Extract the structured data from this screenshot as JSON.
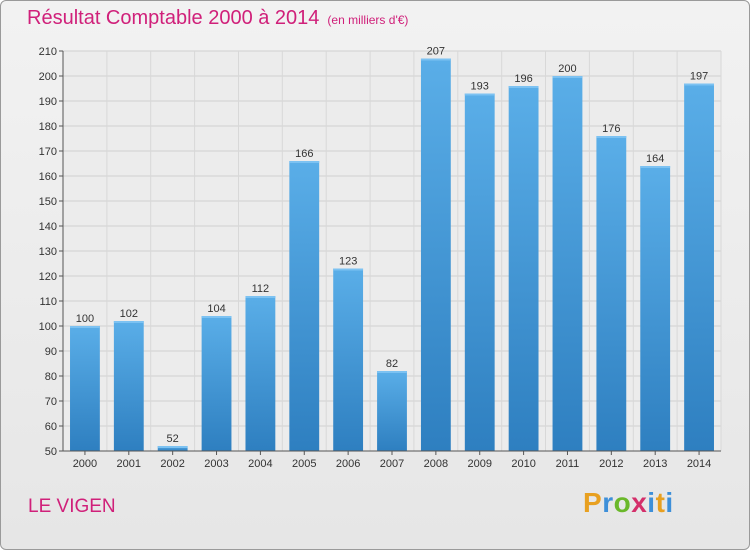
{
  "title": "Résultat Comptable 2000 à 2014",
  "subtitle": "(en milliers d'€)",
  "commune": "LE VIGEN",
  "logo": {
    "letters": [
      "P",
      "r",
      "o",
      "x",
      "i",
      "t",
      "i"
    ]
  },
  "colors": {
    "bar": "#3a97dd",
    "title": "#d0207a"
  },
  "chart_data": {
    "type": "bar",
    "categories": [
      "2000",
      "2001",
      "2002",
      "2003",
      "2004",
      "2005",
      "2006",
      "2007",
      "2008",
      "2009",
      "2010",
      "2011",
      "2012",
      "2013",
      "2014"
    ],
    "values": [
      100,
      102,
      52,
      104,
      112,
      166,
      123,
      82,
      207,
      193,
      196,
      200,
      176,
      164,
      197
    ],
    "data_labels": [
      "100",
      "102",
      "52",
      "104",
      "112",
      "166",
      "123",
      "82",
      "207",
      "193",
      "196",
      "200",
      "176",
      "164",
      "197"
    ],
    "ylim": [
      50,
      210
    ],
    "yticks": [
      50,
      60,
      70,
      80,
      90,
      100,
      110,
      120,
      130,
      140,
      150,
      160,
      170,
      180,
      190,
      200,
      210
    ],
    "grid": true
  }
}
